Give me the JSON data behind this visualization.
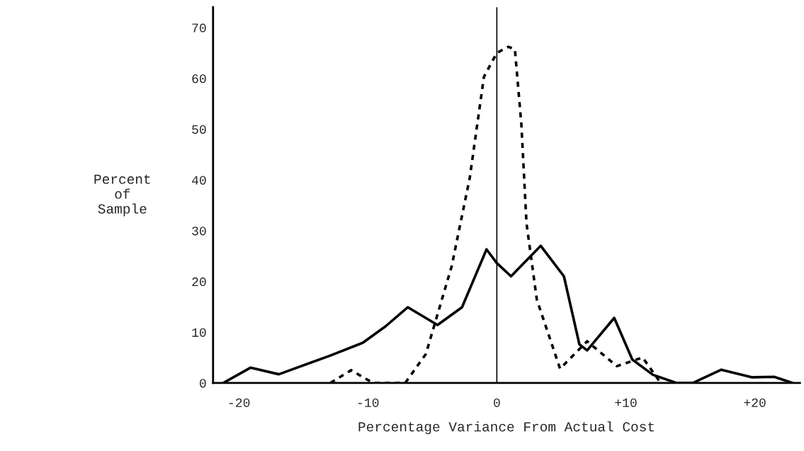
{
  "chart_data": {
    "type": "line",
    "xlabel": "Percentage Variance From Actual Cost",
    "ylabel": "Percent\nof\nSample",
    "xlim": [
      -22,
      23.5
    ],
    "ylim": [
      0,
      74
    ],
    "xticks": [
      -20,
      -10,
      0,
      {
        "value": 10,
        "label": "+10"
      },
      {
        "value": 20,
        "label": "+20"
      }
    ],
    "yticks": [
      0,
      10,
      20,
      30,
      40,
      50,
      60,
      70
    ],
    "grid": false,
    "legend": false,
    "marker": "none",
    "ref_lines": [
      {
        "axis": "x",
        "value": 0,
        "color": "#000000"
      }
    ],
    "series": [
      {
        "color": "#000000",
        "line_style": "solid",
        "x": [
          -21.2,
          -19.1,
          -16.9,
          -12.9,
          -10.4,
          -8.6,
          -6.9,
          -4.6,
          -2.7,
          -1.6,
          -0.8,
          0,
          1.1,
          3.4,
          5.2,
          6.4,
          7.0,
          9.1,
          10.5,
          12.1,
          13.9,
          15.2,
          17.4,
          19.8,
          21.5,
          22.9
        ],
        "values": [
          0,
          3.0,
          1.7,
          5.4,
          7.9,
          11.2,
          14.9,
          11.4,
          14.9,
          21.5,
          26.3,
          23.6,
          21.0,
          27.0,
          21.0,
          7.6,
          6.4,
          12.8,
          4.6,
          1.6,
          0,
          0,
          2.6,
          1.1,
          1.2,
          0
        ]
      },
      {
        "color": "#000000",
        "line_style": "dashed",
        "x": [
          -12.9,
          -11.3,
          -9.6,
          -7.1,
          -5.5,
          -3.5,
          -2.1,
          -1.0,
          0,
          0.9,
          1.4,
          1.9,
          2.3,
          3.1,
          4.9,
          7.0,
          9.3,
          11.3,
          12.7
        ],
        "values": [
          0,
          2.5,
          0,
          0,
          5.7,
          23,
          40.4,
          60.3,
          65,
          66.2,
          65.7,
          51,
          31.4,
          16.4,
          2.8,
          8.2,
          3.3,
          5.0,
          0
        ]
      }
    ]
  }
}
